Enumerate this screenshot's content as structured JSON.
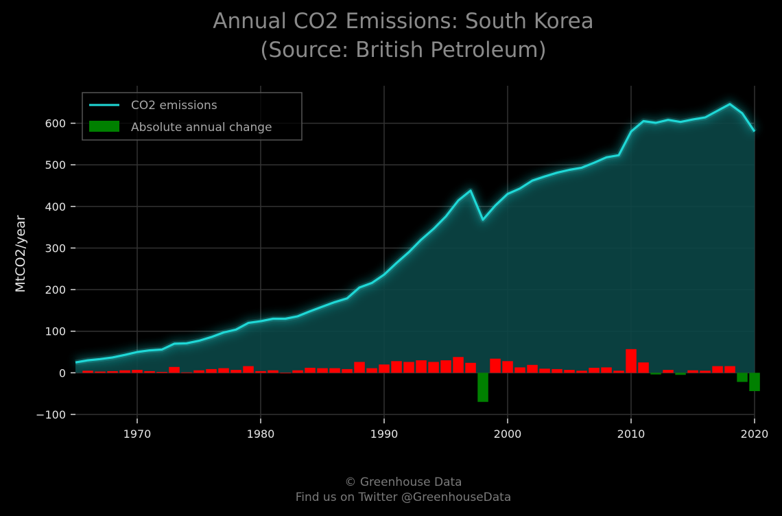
{
  "chart_data": {
    "type": "line+bar",
    "title_line1": "Annual CO2 Emissions: South Korea",
    "title_line2": "(Source: British Petroleum)",
    "ylabel": "MtCO2/year",
    "xlim": [
      1965,
      2020
    ],
    "ylim": [
      -110,
      690
    ],
    "x_ticks": [
      1970,
      1980,
      1990,
      2000,
      2010,
      2020
    ],
    "y_ticks": [
      -100,
      0,
      100,
      200,
      300,
      400,
      500,
      600
    ],
    "y_tick_labels": [
      "−100",
      "0",
      "100",
      "200",
      "300",
      "400",
      "500",
      "600"
    ],
    "grid": true,
    "legend_position": "top-left",
    "colors": {
      "line": "#1fd8d6",
      "glow": "#1fd8d6",
      "area": "#0b4646",
      "increase": "#ff0000",
      "decrease": "#008000",
      "grid": "#333333"
    },
    "series": [
      {
        "name": "CO2 emissions",
        "kind": "line",
        "years": [
          1965,
          1966,
          1967,
          1968,
          1969,
          1970,
          1971,
          1972,
          1973,
          1974,
          1975,
          1976,
          1977,
          1978,
          1979,
          1980,
          1981,
          1982,
          1983,
          1984,
          1985,
          1986,
          1987,
          1988,
          1989,
          1990,
          1991,
          1992,
          1993,
          1994,
          1995,
          1996,
          1997,
          1998,
          1999,
          2000,
          2001,
          2002,
          2003,
          2004,
          2005,
          2006,
          2007,
          2008,
          2009,
          2010,
          2011,
          2012,
          2013,
          2014,
          2015,
          2016,
          2017,
          2018,
          2019,
          2020
        ],
        "values": [
          25,
          30,
          33,
          37,
          43,
          50,
          54,
          56,
          70,
          71,
          77,
          86,
          97,
          104,
          120,
          124,
          130,
          130,
          136,
          148,
          159,
          170,
          179,
          205,
          216,
          236,
          264,
          290,
          320,
          346,
          376,
          414,
          438,
          368,
          402,
          430,
          443,
          462,
          472,
          481,
          488,
          493,
          505,
          518,
          523,
          580,
          605,
          601,
          608,
          603,
          609,
          614,
          630,
          646,
          624,
          580
        ]
      },
      {
        "name": "Absolute annual change",
        "kind": "bar",
        "years": [
          1966,
          1967,
          1968,
          1969,
          1970,
          1971,
          1972,
          1973,
          1974,
          1975,
          1976,
          1977,
          1978,
          1979,
          1980,
          1981,
          1982,
          1983,
          1984,
          1985,
          1986,
          1987,
          1988,
          1989,
          1990,
          1991,
          1992,
          1993,
          1994,
          1995,
          1996,
          1997,
          1998,
          1999,
          2000,
          2001,
          2002,
          2003,
          2004,
          2005,
          2006,
          2007,
          2008,
          2009,
          2010,
          2011,
          2012,
          2013,
          2014,
          2015,
          2016,
          2017,
          2018,
          2019,
          2020
        ],
        "values": [
          5,
          3,
          4,
          6,
          7,
          4,
          2,
          14,
          1,
          6,
          9,
          11,
          7,
          16,
          4,
          6,
          0,
          6,
          12,
          11,
          11,
          9,
          26,
          11,
          20,
          28,
          26,
          30,
          26,
          30,
          38,
          24,
          -70,
          34,
          28,
          13,
          19,
          10,
          9,
          7,
          5,
          12,
          13,
          5,
          57,
          25,
          -4,
          7,
          -5,
          6,
          5,
          16,
          16,
          -22,
          -44
        ]
      }
    ]
  },
  "footer": {
    "line1": "© Greenhouse Data",
    "line2": "Find us on Twitter @GreenhouseData"
  }
}
